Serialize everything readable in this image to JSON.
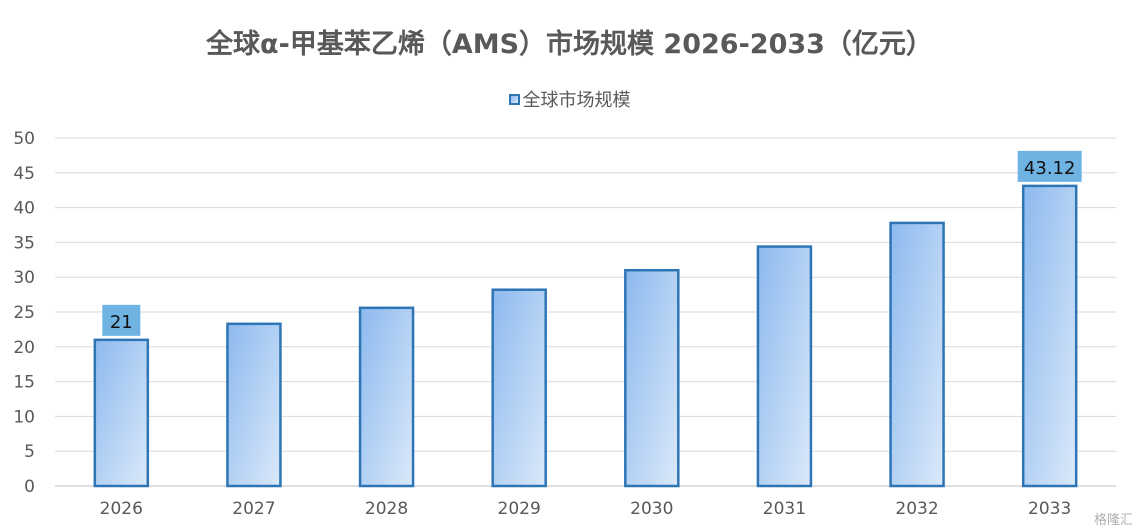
{
  "chart_data": {
    "type": "bar",
    "title": "全球α-甲基苯乙烯（AMS）市场规模 2026-2033（亿元）",
    "categories": [
      "2026",
      "2027",
      "2028",
      "2029",
      "2030",
      "2031",
      "2032",
      "2033"
    ],
    "series": [
      {
        "name": "全球市场规模",
        "values": [
          21,
          23.3,
          25.6,
          28.2,
          31.0,
          34.4,
          37.8,
          43.12
        ]
      }
    ],
    "data_labels": {
      "2026": "21",
      "2033": "43.12"
    },
    "ylim": [
      0,
      50
    ],
    "yticks": [
      0,
      5,
      10,
      15,
      20,
      25,
      30,
      35,
      40,
      45,
      50
    ],
    "grid": true,
    "legend_position": "top"
  },
  "colors": {
    "bar_border": "#2e75b6",
    "bar_gradient_start": "#8cb9ee",
    "bar_gradient_end": "#dbe9fa",
    "label_bg": "#6fb3e3",
    "grid": "#d9d9d9",
    "text": "#595959"
  },
  "watermark": "格隆汇"
}
